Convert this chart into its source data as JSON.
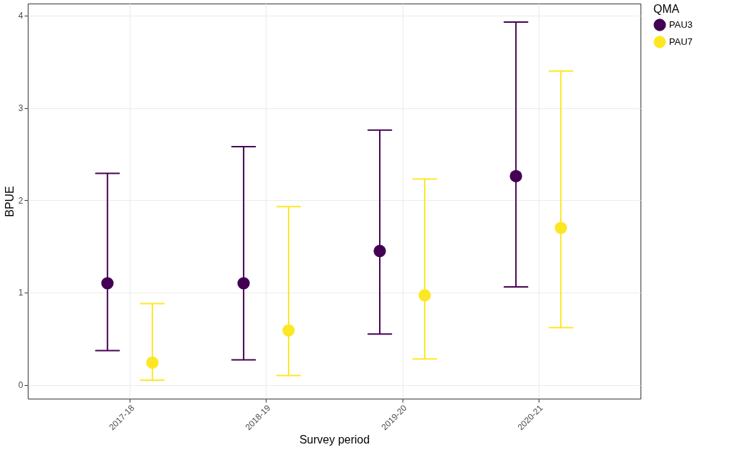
{
  "chart_data": {
    "type": "scatter",
    "xlabel": "Survey period",
    "ylabel": "BPUE",
    "legend_title": "QMA",
    "categories": [
      "2017-18",
      "2018-19",
      "2019-20",
      "2020-21"
    ],
    "series": [
      {
        "name": "PAU3",
        "color": "#440154",
        "values": [
          1.1,
          1.1,
          1.45,
          2.26
        ],
        "errors": [
          [
            0.37,
            2.29
          ],
          [
            0.27,
            2.58
          ],
          [
            0.55,
            2.76
          ],
          [
            1.06,
            3.93
          ]
        ]
      },
      {
        "name": "PAU7",
        "color": "#fde725",
        "values": [
          0.24,
          0.59,
          0.97,
          1.7
        ],
        "errors": [
          [
            0.05,
            0.88
          ],
          [
            0.1,
            1.93
          ],
          [
            0.28,
            2.23
          ],
          [
            0.62,
            3.4
          ]
        ]
      }
    ],
    "ylim": [
      -0.15,
      4.13
    ],
    "yticks": [
      0,
      1,
      2,
      3,
      4
    ],
    "grid": true,
    "legend": "right",
    "marker": "circle"
  }
}
